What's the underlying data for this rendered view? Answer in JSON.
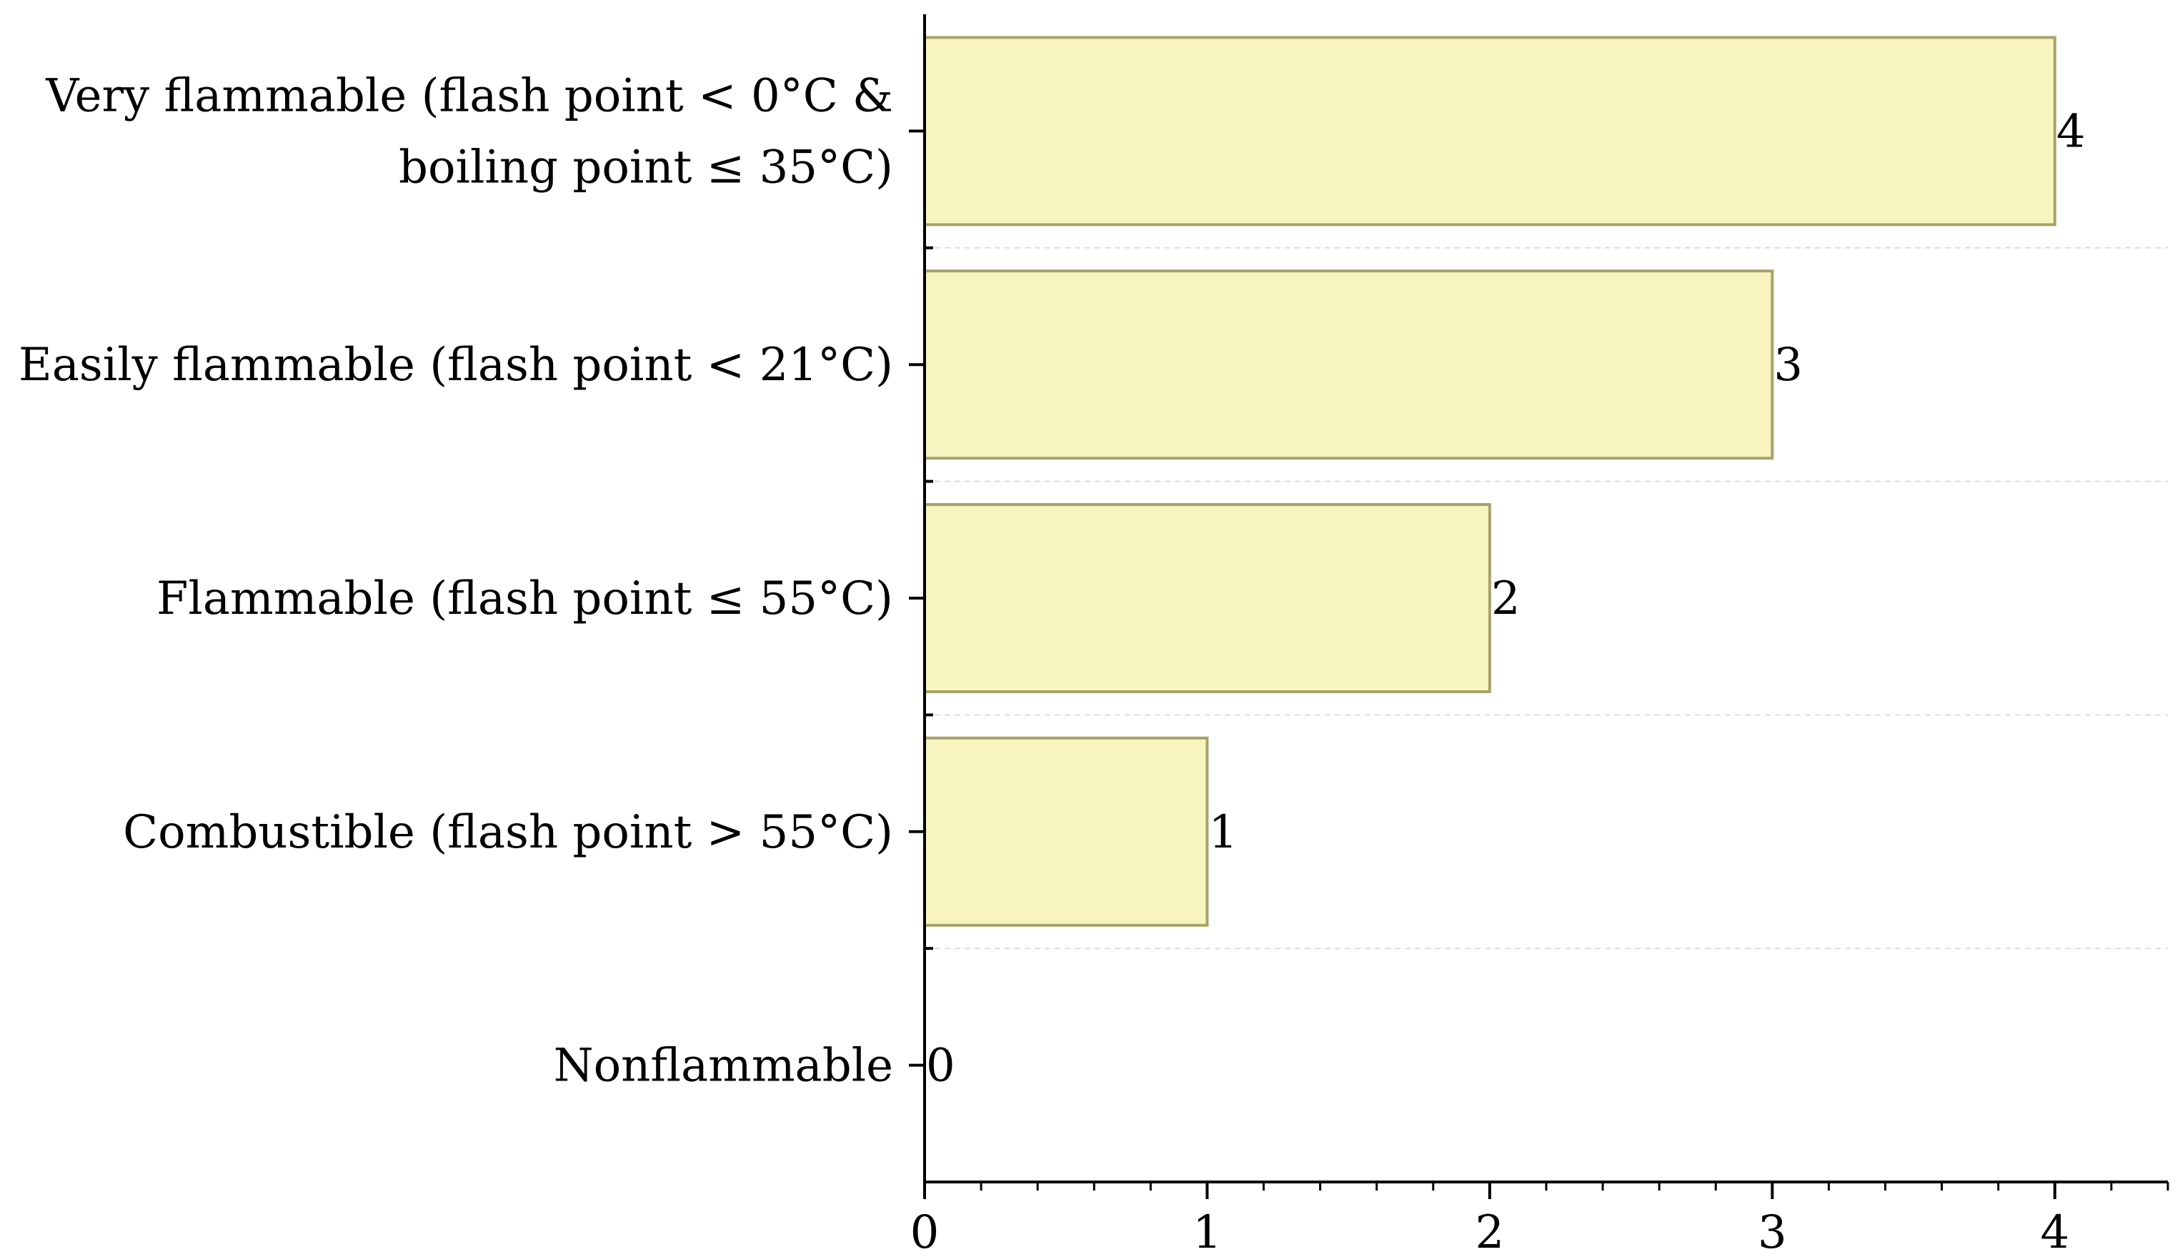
{
  "chart_data": {
    "type": "bar",
    "orientation": "horizontal",
    "categories": [
      [
        "Very flammable (flash point < 0°C &",
        "boiling point ≤ 35°C)"
      ],
      [
        "Easily flammable (flash point < 21°C)"
      ],
      [
        "Flammable (flash point ≤ 55°C)"
      ],
      [
        "Combustible (flash point > 55°C)"
      ],
      [
        "Nonflammable"
      ]
    ],
    "values": [
      4,
      3,
      2,
      1,
      0
    ],
    "data_labels": [
      "4",
      "3",
      "2",
      "1",
      "0"
    ],
    "x_ticks": [
      "0",
      "1",
      "2",
      "3",
      "4"
    ],
    "xlim": [
      0,
      4.4
    ],
    "title": "",
    "xlabel": "",
    "ylabel": "",
    "grid": "horizontal dashed between categories",
    "legend": "none",
    "colors": {
      "bar_fill": "#f8f4c0",
      "bar_stroke": "#a6a36a",
      "axis": "#000000",
      "grid": "#dddddd"
    }
  }
}
